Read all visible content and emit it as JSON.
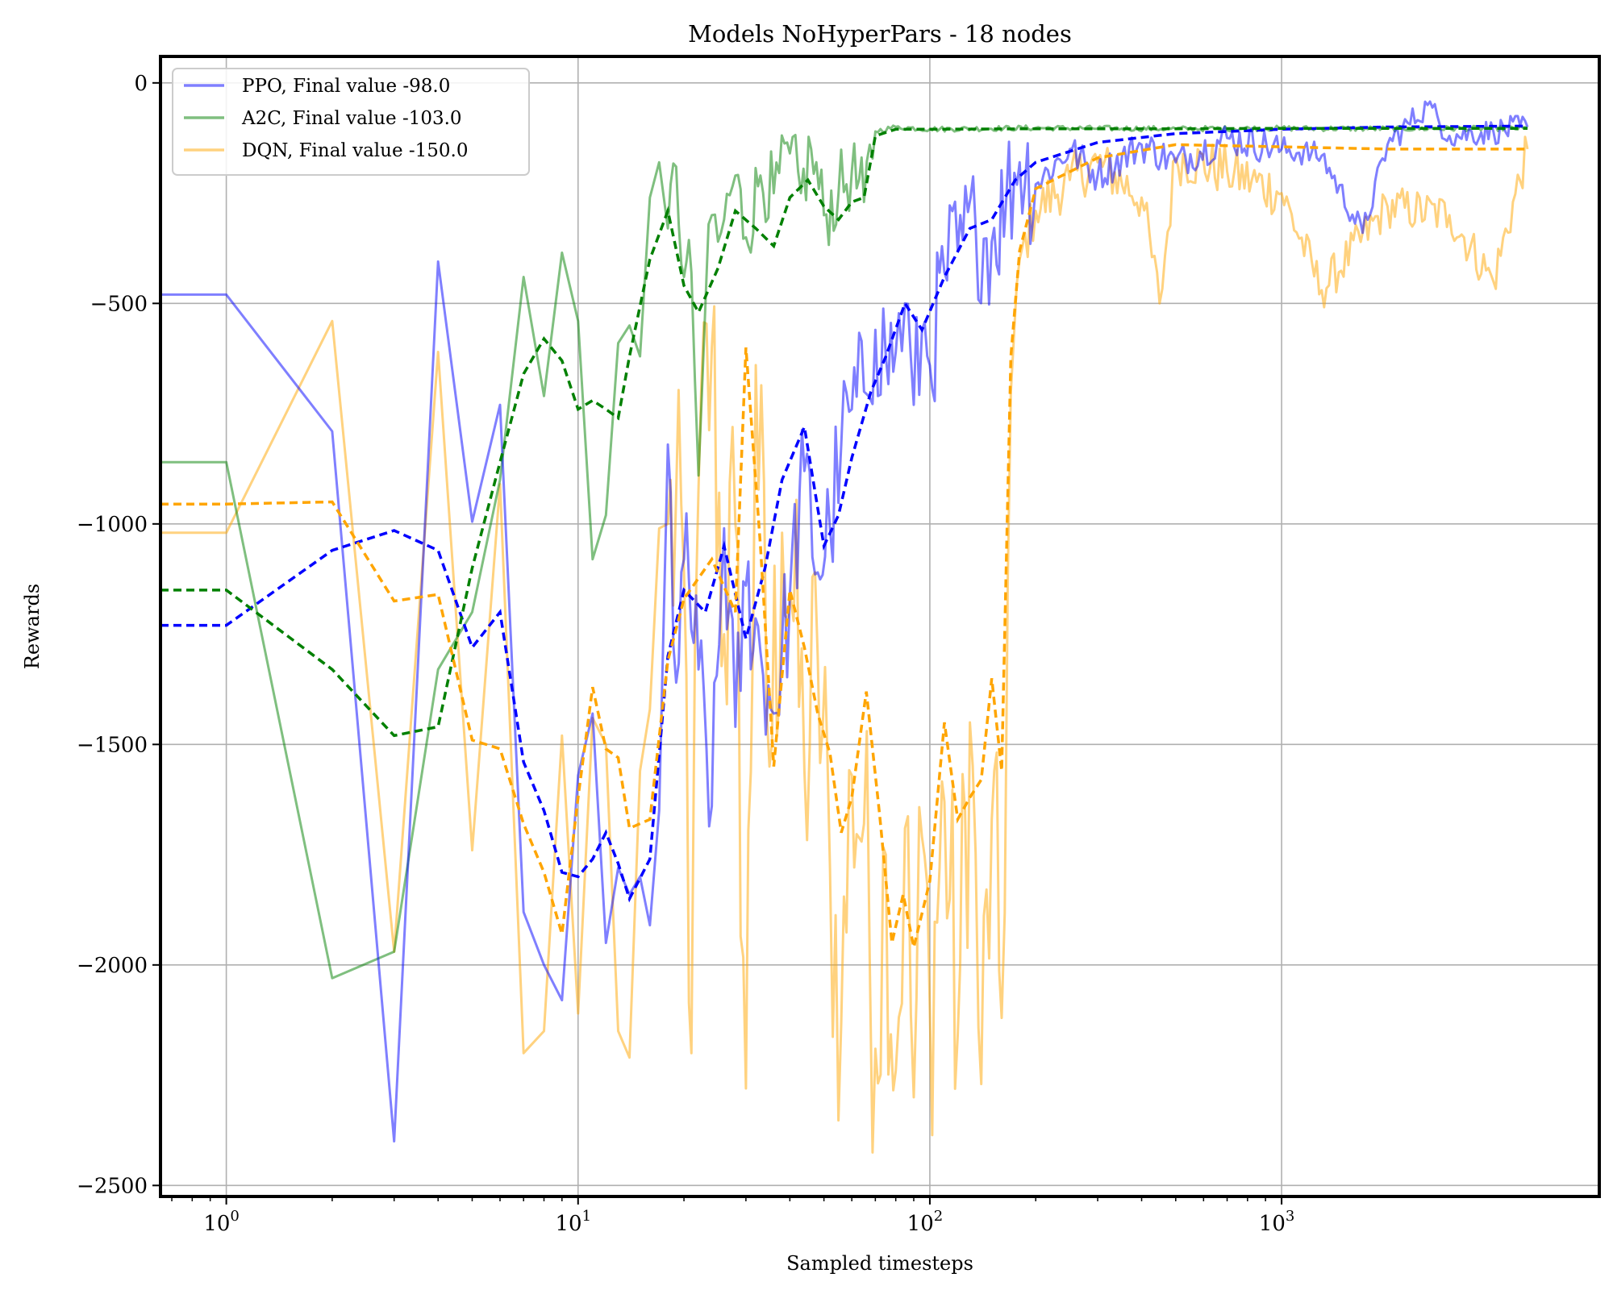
{
  "chart_data": {
    "type": "line",
    "title": "Models NoHyperPars - 18 nodes",
    "xlabel": "Sampled timesteps",
    "ylabel": "Rewards",
    "xscale": "log",
    "xlim": [
      0.65,
      8000
    ],
    "ylim": [
      -2525,
      60
    ],
    "grid": true,
    "legend_position": "top-left",
    "x_ticks": [
      {
        "value": 1,
        "base": "10",
        "exp": "0"
      },
      {
        "value": 10,
        "base": "10",
        "exp": "1"
      },
      {
        "value": 100,
        "base": "10",
        "exp": "2"
      },
      {
        "value": 1000,
        "base": "10",
        "exp": "3"
      }
    ],
    "y_ticks": [
      {
        "value": 0,
        "label": "0"
      },
      {
        "value": -500,
        "label": "−500"
      },
      {
        "value": -1000,
        "label": "−1000"
      },
      {
        "value": -1500,
        "label": "−1500"
      },
      {
        "value": -2000,
        "label": "−2000"
      },
      {
        "value": -2500,
        "label": "−2500"
      }
    ],
    "series": [
      {
        "name": "PPO, Final value -98.0",
        "color": "#0000ff",
        "raw": [
          [
            0.65,
            -480
          ],
          [
            1,
            -480
          ],
          [
            2,
            -790
          ],
          [
            3,
            -2400
          ],
          [
            4,
            -405
          ],
          [
            5,
            -995
          ],
          [
            6,
            -730
          ],
          [
            7,
            -1880
          ],
          [
            8,
            -2000
          ],
          [
            9,
            -2080
          ],
          [
            10,
            -1570
          ],
          [
            11,
            -1430
          ],
          [
            12,
            -1950
          ],
          [
            13,
            -1780
          ],
          [
            14,
            -1840
          ],
          [
            15,
            -1800
          ],
          [
            16,
            -1910
          ],
          [
            17,
            -1650
          ],
          [
            18,
            -820
          ],
          [
            19,
            -1360
          ],
          [
            20,
            -1080
          ],
          [
            22,
            -1330
          ],
          [
            24,
            -1640
          ],
          [
            26,
            -1010
          ],
          [
            28,
            -1460
          ],
          [
            30,
            -1140
          ],
          [
            33,
            -1290
          ],
          [
            36,
            -1430
          ],
          [
            40,
            -1160
          ],
          [
            44,
            -880
          ],
          [
            48,
            -1110
          ],
          [
            52,
            -1010
          ],
          [
            56,
            -820
          ],
          [
            60,
            -740
          ],
          [
            65,
            -700
          ],
          [
            70,
            -560
          ],
          [
            75,
            -620
          ],
          [
            80,
            -610
          ],
          [
            85,
            -500
          ],
          [
            90,
            -730
          ],
          [
            95,
            -560
          ],
          [
            100,
            -640
          ],
          [
            110,
            -430
          ],
          [
            120,
            -380
          ],
          [
            135,
            -330
          ],
          [
            150,
            -360
          ],
          [
            165,
            -260
          ],
          [
            180,
            -180
          ],
          [
            200,
            -230
          ],
          [
            250,
            -150
          ],
          [
            300,
            -210
          ],
          [
            400,
            -140
          ],
          [
            500,
            -180
          ],
          [
            700,
            -125
          ],
          [
            1000,
            -150
          ],
          [
            1300,
            -165
          ],
          [
            1700,
            -340
          ],
          [
            2000,
            -140
          ],
          [
            2600,
            -50
          ],
          [
            3000,
            -120
          ],
          [
            4000,
            -110
          ],
          [
            5000,
            -100
          ]
        ],
        "smooth": [
          [
            0.65,
            -1230
          ],
          [
            1,
            -1230
          ],
          [
            2,
            -1060
          ],
          [
            3,
            -1015
          ],
          [
            4,
            -1060
          ],
          [
            5,
            -1280
          ],
          [
            6,
            -1200
          ],
          [
            7,
            -1540
          ],
          [
            8,
            -1650
          ],
          [
            9,
            -1790
          ],
          [
            10,
            -1800
          ],
          [
            11,
            -1760
          ],
          [
            12,
            -1700
          ],
          [
            13,
            -1770
          ],
          [
            14,
            -1850
          ],
          [
            16,
            -1760
          ],
          [
            18,
            -1300
          ],
          [
            20,
            -1150
          ],
          [
            23,
            -1200
          ],
          [
            26,
            -1050
          ],
          [
            30,
            -1260
          ],
          [
            34,
            -1100
          ],
          [
            38,
            -900
          ],
          [
            44,
            -780
          ],
          [
            50,
            -1050
          ],
          [
            55,
            -980
          ],
          [
            60,
            -850
          ],
          [
            68,
            -700
          ],
          [
            75,
            -620
          ],
          [
            85,
            -500
          ],
          [
            95,
            -560
          ],
          [
            110,
            -440
          ],
          [
            130,
            -330
          ],
          [
            150,
            -310
          ],
          [
            175,
            -220
          ],
          [
            200,
            -180
          ],
          [
            300,
            -135
          ],
          [
            500,
            -115
          ],
          [
            1000,
            -105
          ],
          [
            2000,
            -100
          ],
          [
            5000,
            -98
          ]
        ]
      },
      {
        "name": "A2C, Final value -103.0",
        "color": "#008000",
        "raw": [
          [
            0.65,
            -860
          ],
          [
            1,
            -860
          ],
          [
            2,
            -2030
          ],
          [
            3,
            -1970
          ],
          [
            4,
            -1330
          ],
          [
            5,
            -1200
          ],
          [
            6,
            -900
          ],
          [
            7,
            -440
          ],
          [
            8,
            -710
          ],
          [
            9,
            -385
          ],
          [
            10,
            -540
          ],
          [
            11,
            -1080
          ],
          [
            12,
            -980
          ],
          [
            13,
            -590
          ],
          [
            14,
            -550
          ],
          [
            15,
            -620
          ],
          [
            16,
            -260
          ],
          [
            17,
            -180
          ],
          [
            18,
            -330
          ],
          [
            19,
            -190
          ],
          [
            20,
            -440
          ],
          [
            21,
            -430
          ],
          [
            22,
            -890
          ],
          [
            23,
            -510
          ],
          [
            24,
            -300
          ],
          [
            25,
            -360
          ],
          [
            26,
            -310
          ],
          [
            28,
            -210
          ],
          [
            30,
            -350
          ],
          [
            33,
            -210
          ],
          [
            36,
            -250
          ],
          [
            40,
            -160
          ],
          [
            43,
            -250
          ],
          [
            46,
            -150
          ],
          [
            50,
            -300
          ],
          [
            55,
            -250
          ],
          [
            60,
            -200
          ],
          [
            65,
            -270
          ],
          [
            70,
            -110
          ],
          [
            80,
            -100
          ],
          [
            100,
            -105
          ],
          [
            200,
            -102
          ],
          [
            500,
            -104
          ],
          [
            1000,
            -103
          ],
          [
            2000,
            -104
          ],
          [
            5000,
            -103
          ]
        ],
        "smooth": [
          [
            0.65,
            -1150
          ],
          [
            1,
            -1150
          ],
          [
            2,
            -1330
          ],
          [
            3,
            -1480
          ],
          [
            4,
            -1460
          ],
          [
            5,
            -1100
          ],
          [
            6,
            -860
          ],
          [
            7,
            -660
          ],
          [
            8,
            -580
          ],
          [
            9,
            -630
          ],
          [
            10,
            -740
          ],
          [
            11,
            -720
          ],
          [
            12,
            -740
          ],
          [
            13,
            -760
          ],
          [
            14,
            -620
          ],
          [
            16,
            -400
          ],
          [
            18,
            -290
          ],
          [
            20,
            -460
          ],
          [
            22,
            -520
          ],
          [
            25,
            -420
          ],
          [
            28,
            -290
          ],
          [
            32,
            -330
          ],
          [
            36,
            -370
          ],
          [
            40,
            -260
          ],
          [
            45,
            -220
          ],
          [
            50,
            -280
          ],
          [
            55,
            -310
          ],
          [
            60,
            -270
          ],
          [
            65,
            -260
          ],
          [
            70,
            -120
          ],
          [
            80,
            -105
          ],
          [
            100,
            -105
          ],
          [
            200,
            -104
          ],
          [
            500,
            -104
          ],
          [
            1000,
            -103
          ],
          [
            5000,
            -103
          ]
        ]
      },
      {
        "name": "DQN, Final value -150.0",
        "color": "#ffa500",
        "raw": [
          [
            0.65,
            -1020
          ],
          [
            1,
            -1020
          ],
          [
            2,
            -540
          ],
          [
            3,
            -1970
          ],
          [
            4,
            -610
          ],
          [
            5,
            -1740
          ],
          [
            6,
            -910
          ],
          [
            7,
            -2200
          ],
          [
            8,
            -2150
          ],
          [
            9,
            -1480
          ],
          [
            10,
            -2110
          ],
          [
            11,
            -1440
          ],
          [
            12,
            -1500
          ],
          [
            13,
            -2150
          ],
          [
            14,
            -2210
          ],
          [
            15,
            -1560
          ],
          [
            16,
            -1420
          ],
          [
            17,
            -1010
          ],
          [
            18,
            -1000
          ],
          [
            20,
            -1110
          ],
          [
            21,
            -2200
          ],
          [
            22,
            -920
          ],
          [
            24,
            -600
          ],
          [
            26,
            -1250
          ],
          [
            28,
            -1000
          ],
          [
            30,
            -2280
          ],
          [
            32,
            -640
          ],
          [
            35,
            -1550
          ],
          [
            38,
            -1020
          ],
          [
            41,
            -1220
          ],
          [
            44,
            -1560
          ],
          [
            48,
            -1300
          ],
          [
            52,
            -1780
          ],
          [
            56,
            -2130
          ],
          [
            60,
            -1570
          ],
          [
            65,
            -1680
          ],
          [
            70,
            -2190
          ],
          [
            75,
            -1750
          ],
          [
            80,
            -2240
          ],
          [
            85,
            -1690
          ],
          [
            90,
            -2300
          ],
          [
            95,
            -1710
          ],
          [
            100,
            -2100
          ],
          [
            110,
            -1630
          ],
          [
            120,
            -2160
          ],
          [
            130,
            -1450
          ],
          [
            140,
            -2270
          ],
          [
            150,
            -1670
          ],
          [
            160,
            -2120
          ],
          [
            170,
            -700
          ],
          [
            180,
            -400
          ],
          [
            200,
            -290
          ],
          [
            250,
            -220
          ],
          [
            300,
            -180
          ],
          [
            400,
            -260
          ],
          [
            450,
            -500
          ],
          [
            500,
            -170
          ],
          [
            700,
            -200
          ],
          [
            1000,
            -250
          ],
          [
            1300,
            -470
          ],
          [
            2000,
            -280
          ],
          [
            3000,
            -300
          ],
          [
            4000,
            -450
          ],
          [
            5000,
            -150
          ]
        ],
        "smooth": [
          [
            0.65,
            -955
          ],
          [
            1,
            -955
          ],
          [
            2,
            -950
          ],
          [
            3,
            -1175
          ],
          [
            4,
            -1160
          ],
          [
            5,
            -1490
          ],
          [
            6,
            -1510
          ],
          [
            7,
            -1680
          ],
          [
            8,
            -1790
          ],
          [
            9,
            -1930
          ],
          [
            10,
            -1620
          ],
          [
            11,
            -1370
          ],
          [
            12,
            -1510
          ],
          [
            13,
            -1530
          ],
          [
            14,
            -1690
          ],
          [
            16,
            -1670
          ],
          [
            18,
            -1310
          ],
          [
            20,
            -1170
          ],
          [
            24,
            -1080
          ],
          [
            28,
            -1200
          ],
          [
            30,
            -600
          ],
          [
            33,
            -1050
          ],
          [
            36,
            -1550
          ],
          [
            40,
            -1150
          ],
          [
            44,
            -1280
          ],
          [
            48,
            -1430
          ],
          [
            52,
            -1520
          ],
          [
            56,
            -1700
          ],
          [
            60,
            -1620
          ],
          [
            66,
            -1380
          ],
          [
            72,
            -1660
          ],
          [
            78,
            -1950
          ],
          [
            84,
            -1840
          ],
          [
            90,
            -1960
          ],
          [
            100,
            -1810
          ],
          [
            110,
            -1450
          ],
          [
            120,
            -1670
          ],
          [
            130,
            -1620
          ],
          [
            140,
            -1580
          ],
          [
            150,
            -1350
          ],
          [
            160,
            -1560
          ],
          [
            170,
            -620
          ],
          [
            180,
            -380
          ],
          [
            200,
            -240
          ],
          [
            300,
            -170
          ],
          [
            500,
            -140
          ],
          [
            1000,
            -145
          ],
          [
            2000,
            -150
          ],
          [
            5000,
            -150
          ]
        ]
      }
    ]
  }
}
